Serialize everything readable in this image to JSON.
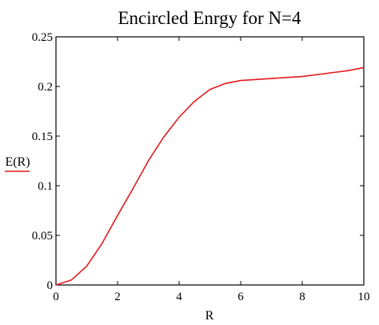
{
  "chart_data": {
    "type": "line",
    "title": "Encircled Enrgy for N=4",
    "xlabel": "R",
    "ylabel": "",
    "xlim": [
      0,
      10
    ],
    "ylim": [
      0,
      0.25
    ],
    "x_ticks": [
      0,
      2,
      4,
      6,
      8,
      10
    ],
    "x_tick_labels": [
      "0",
      "2",
      "4",
      "6",
      "8",
      "10"
    ],
    "y_ticks": [
      0,
      0.05,
      0.1,
      0.15,
      0.2,
      0.25
    ],
    "y_tick_labels": [
      "0",
      "0.05",
      "0.1",
      "0.15",
      "0.2",
      "0.25"
    ],
    "grid": false,
    "legend_position": "left",
    "series": [
      {
        "name": "E(R)",
        "color": "#e31a1c",
        "x": [
          0,
          0.5,
          1,
          1.5,
          2,
          2.5,
          3,
          3.5,
          4,
          4.5,
          5,
          5.5,
          6,
          7,
          8,
          9,
          9.5,
          10
        ],
        "y": [
          0,
          0.005,
          0.019,
          0.042,
          0.07,
          0.097,
          0.125,
          0.149,
          0.169,
          0.185,
          0.197,
          0.203,
          0.206,
          0.208,
          0.21,
          0.214,
          0.216,
          0.219
        ]
      }
    ]
  }
}
